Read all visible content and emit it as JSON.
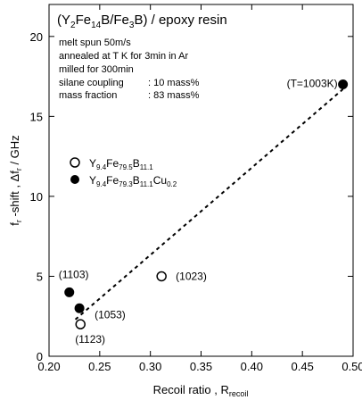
{
  "chart_data": {
    "type": "scatter",
    "title_parts": {
      "open": "(Y",
      "s1": "2",
      "m1": "Fe",
      "s2": "14",
      "m2": "B/Fe",
      "s3": "3",
      "m3": "B) / epoxy resin"
    },
    "notes": {
      "line1": "melt spun 50m/s",
      "line2": "annealed at T K for 3min in Ar",
      "line3": "milled for 300min",
      "line4_label": "silane coupling",
      "line4_value": ": 10 mass%",
      "line5_label": "mass fraction",
      "line5_value": ": 83 mass%"
    },
    "xlabel": {
      "main": "Recoil ratio , R",
      "sub": "recoil"
    },
    "ylabel": {
      "p1": "f",
      "s1": "r",
      "p2": " -shift , Δf",
      "s2": "r",
      "p3": " / GHz"
    },
    "xlim": [
      0.2,
      0.5
    ],
    "ylim": [
      0,
      22
    ],
    "x_ticks": [
      "0.20",
      "0.25",
      "0.30",
      "0.35",
      "0.40",
      "0.45",
      "0.50"
    ],
    "x_tick_values": [
      0.2,
      0.25,
      0.3,
      0.35,
      0.4,
      0.45,
      0.5
    ],
    "y_ticks": [
      "0",
      "5",
      "10",
      "15",
      "20"
    ],
    "y_tick_values": [
      0,
      5,
      10,
      15,
      20
    ],
    "series": [
      {
        "legend_parts": {
          "a": "Y",
          "as": "9.4",
          "b": "Fe",
          "bs": "79.5",
          "c": "B",
          "cs": "11.1",
          "d": "",
          "ds": ""
        },
        "marker": "open-circle",
        "points": [
          {
            "x": 0.231,
            "y": 2.0,
            "label": "(1123)"
          },
          {
            "x": 0.311,
            "y": 5.0,
            "label": "(1023)"
          }
        ]
      },
      {
        "legend_parts": {
          "a": "Y",
          "as": "9.4",
          "b": "Fe",
          "bs": "79.3",
          "c": "B",
          "cs": "11.1",
          "d": "Cu",
          "ds": "0.2"
        },
        "marker": "filled-circle",
        "points": [
          {
            "x": 0.22,
            "y": 4.0,
            "label": "(1103)"
          },
          {
            "x": 0.23,
            "y": 3.0,
            "label": "(1053)"
          },
          {
            "x": 0.49,
            "y": 17.0,
            "label": "(T=1003K)"
          }
        ]
      }
    ],
    "trend_line": {
      "style": "dashed",
      "from": {
        "x": 0.226,
        "y": 2.3
      },
      "to": {
        "x": 0.49,
        "y": 16.7
      }
    },
    "grid": false
  }
}
